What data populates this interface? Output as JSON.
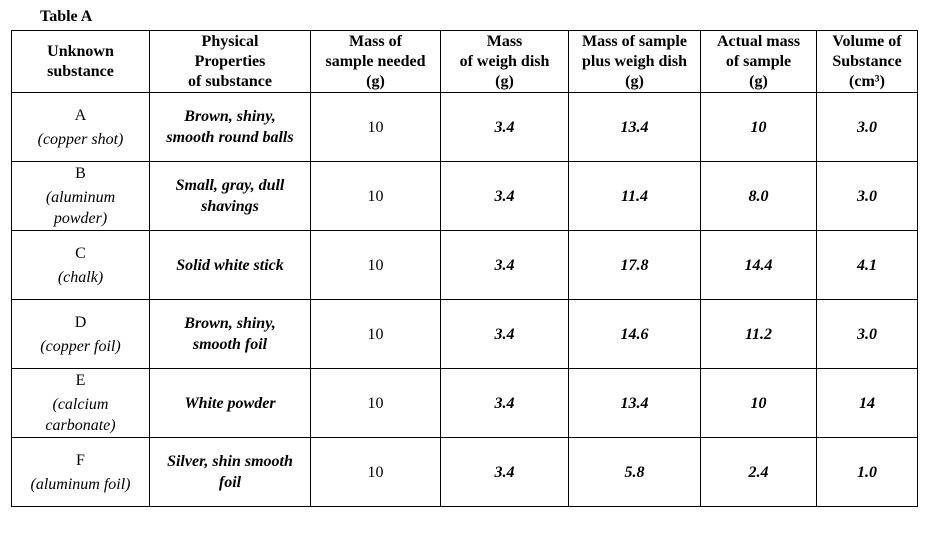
{
  "title": "Table A",
  "table": {
    "header": [
      [
        "Unknown",
        "substance"
      ],
      [
        "Physical",
        "Properties",
        "of substance"
      ],
      [
        "Mass of",
        "sample needed",
        "(g)"
      ],
      [
        "Mass",
        "of weigh dish",
        "(g)"
      ],
      [
        "Mass of sample",
        "plus weigh dish",
        "(g)"
      ],
      [
        "Actual mass",
        "of sample",
        "(g)"
      ],
      [
        "Volume of",
        "Substance",
        "(cm³)"
      ]
    ],
    "rows": [
      [
        [
          "A",
          "(copper shot)"
        ],
        [
          "Brown, shiny,",
          "smooth round balls"
        ],
        "10",
        "3.4",
        "13.4",
        "10",
        "3.0"
      ],
      [
        [
          "B",
          "(aluminum",
          "powder)"
        ],
        [
          "Small, gray, dull",
          "shavings"
        ],
        "10",
        "3.4",
        "11.4",
        "8.0",
        "3.0"
      ],
      [
        [
          "C",
          "(chalk)"
        ],
        [
          "Solid white stick"
        ],
        "10",
        "3.4",
        "17.8",
        "14.4",
        "4.1"
      ],
      [
        [
          "D",
          "(copper foil)"
        ],
        [
          "Brown, shiny,",
          "smooth foil"
        ],
        "10",
        "3.4",
        "14.6",
        "11.2",
        "3.0"
      ],
      [
        [
          "E",
          "(calcium",
          "carbonate)"
        ],
        [
          "White powder"
        ],
        "10",
        "3.4",
        "13.4",
        "10",
        "14"
      ],
      [
        [
          "F",
          "(aluminum foil)"
        ],
        [
          "Silver, shin smooth",
          "foil"
        ],
        "10",
        "3.4",
        "5.8",
        "2.4",
        "1.0"
      ]
    ]
  }
}
